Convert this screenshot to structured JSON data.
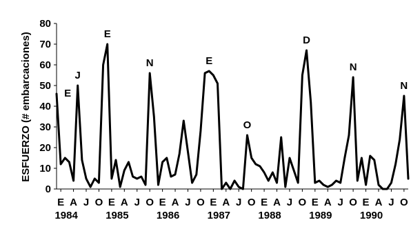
{
  "chart_data": {
    "type": "line",
    "ylabel": "ESFUERZO (# embarcaciones)",
    "xlabel": "",
    "ylim": [
      0,
      80
    ],
    "yticks": [
      0,
      10,
      20,
      30,
      40,
      50,
      60,
      70,
      80
    ],
    "grid": false,
    "legend": "none",
    "x_month_ticks": [
      "E",
      "A",
      "J",
      "O",
      "E",
      "A",
      "J",
      "O",
      "E",
      "A",
      "J",
      "O",
      "E",
      "A",
      "J",
      "O",
      "E",
      "A",
      "J",
      "O",
      "E",
      "A",
      "J",
      "O",
      "E",
      "A",
      "J",
      "O"
    ],
    "x_year_labels": [
      {
        "label": "1984",
        "month_index": 1
      },
      {
        "label": "1985",
        "month_index": 13
      },
      {
        "label": "1986",
        "month_index": 25
      },
      {
        "label": "1987",
        "month_index": 37
      },
      {
        "label": "1988",
        "month_index": 49
      },
      {
        "label": "1989",
        "month_index": 61
      },
      {
        "label": "1990",
        "month_index": 73
      }
    ],
    "series": [
      {
        "values": [
          46,
          12,
          15,
          13,
          4,
          50,
          14,
          5,
          1,
          5,
          3,
          60,
          70,
          5,
          14,
          1,
          9,
          13,
          6,
          5,
          6,
          2,
          56,
          35,
          2,
          13,
          15,
          6,
          7,
          17,
          33,
          18,
          3,
          7,
          28,
          56,
          57,
          55,
          51,
          0,
          3,
          0,
          4,
          1,
          0,
          26,
          15,
          12,
          11,
          8,
          4,
          8,
          3,
          25,
          1,
          15,
          9,
          3,
          55,
          67,
          42,
          3,
          4,
          2,
          1,
          2,
          4,
          3,
          15,
          26,
          54,
          4,
          15,
          2,
          16,
          14,
          2,
          0,
          0,
          3,
          12,
          24,
          45,
          5
        ]
      }
    ],
    "annotations": [
      {
        "text": "E",
        "month_index": 1,
        "y": 46
      },
      {
        "text": "J",
        "month_index": 5,
        "y": 50
      },
      {
        "text": "E",
        "month_index": 12,
        "y": 70
      },
      {
        "text": "N",
        "month_index": 22,
        "y": 56
      },
      {
        "text": "E",
        "month_index": 36,
        "y": 57
      },
      {
        "text": "O",
        "month_index": 45,
        "y": 26
      },
      {
        "text": "D",
        "month_index": 59,
        "y": 67
      },
      {
        "text": "N",
        "month_index": 70,
        "y": 54
      },
      {
        "text": "N",
        "month_index": 82,
        "y": 45
      }
    ],
    "colors": {
      "line": "#000000",
      "axis": "#000000",
      "plot_bg": "#ffffff"
    }
  }
}
